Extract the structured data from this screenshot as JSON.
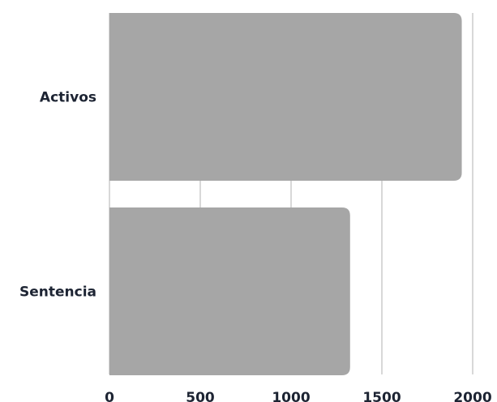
{
  "chart_data": {
    "type": "bar",
    "orientation": "horizontal",
    "categories": [
      "Activos",
      "Sentencia"
    ],
    "values": [
      1940,
      1325
    ],
    "xlim": [
      0,
      2000
    ],
    "x_ticks": [
      "0",
      "500",
      "1000",
      "1500",
      "2000"
    ],
    "title": "",
    "xlabel": "",
    "ylabel": "",
    "grid": "vertical",
    "bar_color": "#a6a6a6",
    "text_color": "#1d2433",
    "grid_color": "#cccccc"
  }
}
